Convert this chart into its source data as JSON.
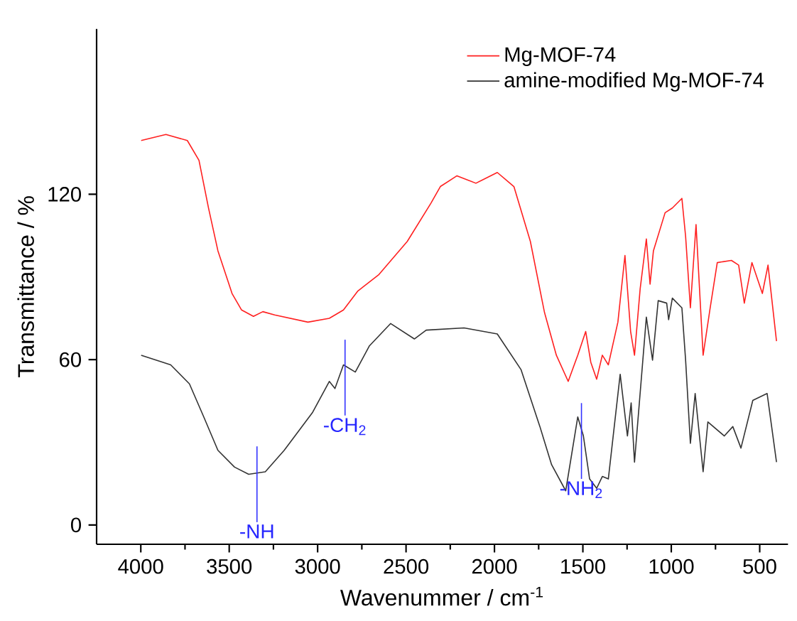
{
  "chart_data": {
    "type": "line",
    "xlabel": "Wavenummer / cm$^{-1}$",
    "ylabel": "Transmittance / %",
    "xlim": [
      4250,
      340
    ],
    "xticks": [
      4000,
      3500,
      3000,
      2500,
      2000,
      1500,
      1000,
      500
    ],
    "ylim": [
      -7,
      180
    ],
    "yticks": [
      0,
      60,
      120
    ],
    "legend": "top right",
    "grid": false,
    "marker": "none",
    "line_style": "solid",
    "series": [
      {
        "name": "Mg-MOF-74",
        "color": "#ff2020",
        "x": [
          3998,
          3858,
          3737,
          3671,
          3617,
          3564,
          3484,
          3430,
          3363,
          3310,
          3243,
          3055,
          2934,
          2854,
          2774,
          2653,
          2493,
          2359,
          2306,
          2212,
          2105,
          1984,
          1890,
          1797,
          1717,
          1650,
          1583,
          1529,
          1484,
          1455,
          1422,
          1390,
          1356,
          1302,
          1262,
          1230,
          1208,
          1176,
          1141,
          1120,
          1101,
          1035,
          994,
          940,
          919,
          892,
          860,
          820,
          780,
          740,
          660,
          619,
          587,
          544,
          485,
          453,
          405
        ],
        "values": [
          139.5,
          141.7,
          139.5,
          132.3,
          115.0,
          99.5,
          84.0,
          78.0,
          75.7,
          77.4,
          76.2,
          73.6,
          75.0,
          78.0,
          84.8,
          90.9,
          102.9,
          116.8,
          122.8,
          126.7,
          124.0,
          127.9,
          122.8,
          102.9,
          77.1,
          61.6,
          52.1,
          61.6,
          70.2,
          59.0,
          52.9,
          61.6,
          58.1,
          73.6,
          97.8,
          70.2,
          61.6,
          85.7,
          103.8,
          87.4,
          99.5,
          113.3,
          115.0,
          118.5,
          104.7,
          78.8,
          109.0,
          61.6,
          78.8,
          95.2,
          96.0,
          94.3,
          80.5,
          95.2,
          84.0,
          94.3,
          66.7
        ]
      },
      {
        "name": "amine-modified Mg-MOF-74",
        "color": "#333333",
        "x": [
          3998,
          3831,
          3725,
          3644,
          3564,
          3470,
          3390,
          3296,
          3189,
          3028,
          2934,
          2902,
          2854,
          2787,
          2707,
          2587,
          2453,
          2386,
          2172,
          1984,
          1850,
          1743,
          1677,
          1597,
          1529,
          1497,
          1462,
          1422,
          1390,
          1356,
          1289,
          1248,
          1227,
          1208,
          1141,
          1106,
          1074,
          1026,
          1015,
          994,
          940,
          919,
          892,
          865,
          820,
          793,
          700,
          652,
          606,
          539,
          458,
          405
        ],
        "values": [
          61.6,
          58.1,
          51.2,
          39.2,
          27.1,
          21.0,
          18.4,
          19.3,
          27.1,
          40.9,
          52.1,
          49.5,
          58.1,
          55.5,
          65.0,
          73.1,
          67.5,
          70.7,
          71.5,
          69.3,
          56.4,
          35.7,
          21.9,
          12.4,
          39.2,
          32.3,
          16.7,
          13.3,
          17.6,
          16.7,
          54.7,
          32.3,
          44.3,
          22.8,
          75.4,
          59.8,
          81.4,
          80.5,
          74.5,
          82.3,
          78.8,
          59.8,
          29.6,
          47.7,
          19.3,
          37.4,
          32.3,
          35.7,
          27.9,
          45.2,
          47.7,
          22.8
        ]
      }
    ],
    "annotations": [
      {
        "text": "-NH",
        "x": 3343,
        "y": 18.9
      },
      {
        "text": "-CH$_{2}$",
        "x": 2845,
        "y": 57.6
      },
      {
        "text": "-NH$_{2}$",
        "x": 1508,
        "y": 34.6
      }
    ]
  }
}
